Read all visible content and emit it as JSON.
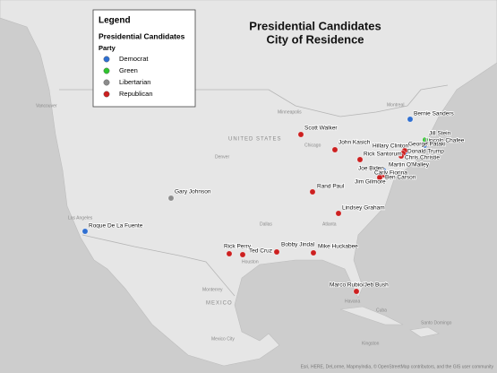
{
  "title": {
    "line1": "Presidential Candidates",
    "line2": "City of Residence"
  },
  "legend": {
    "title": "Legend",
    "layer": "Presidential Candidates",
    "field": "Party",
    "items": [
      {
        "label": "Democrat",
        "color": "#2f6fd1"
      },
      {
        "label": "Green",
        "color": "#2fc42f"
      },
      {
        "label": "Libertarian",
        "color": "#8c8c8c"
      },
      {
        "label": "Republican",
        "color": "#cc2020"
      }
    ]
  },
  "candidates": [
    {
      "name": "Roque De La Fuente",
      "party": "Democrat"
    },
    {
      "name": "Gary Johnson",
      "party": "Libertarian"
    },
    {
      "name": "Scott Walker",
      "party": "Republican"
    },
    {
      "name": "John Kasich",
      "party": "Republican"
    },
    {
      "name": "Rick Santorum",
      "party": "Republican"
    },
    {
      "name": "Hillary Clinton",
      "party": "Democrat"
    },
    {
      "name": "Bernie Sanders",
      "party": "Democrat"
    },
    {
      "name": "Jill Stein",
      "party": "Green"
    },
    {
      "name": "Lincoln Chafee",
      "party": "Democrat"
    },
    {
      "name": "George Pataki",
      "party": "Republican"
    },
    {
      "name": "Donald Trump",
      "party": "Republican"
    },
    {
      "name": "Chris Christie",
      "party": "Republican"
    },
    {
      "name": "Martin O'Malley",
      "party": "Democrat"
    },
    {
      "name": "Joe Biden",
      "party": "Democrat"
    },
    {
      "name": "Carly Fiorina",
      "party": "Republican"
    },
    {
      "name": "Ben Carson",
      "party": "Republican"
    },
    {
      "name": "Jim Gilmore",
      "party": "Republican"
    },
    {
      "name": "Rand Paul",
      "party": "Republican"
    },
    {
      "name": "Lindsey Graham",
      "party": "Republican"
    },
    {
      "name": "Rick Perry",
      "party": "Republican"
    },
    {
      "name": "Ted Cruz",
      "party": "Republican"
    },
    {
      "name": "Bobby Jindal",
      "party": "Republican"
    },
    {
      "name": "Mike Huckabee",
      "party": "Republican"
    },
    {
      "name": "Marco Rubio/Jeb Bush",
      "party": "Republican"
    }
  ],
  "basemap_labels": [
    "UNITED STATES",
    "MEXICO",
    "Montreal",
    "Chicago",
    "Denver",
    "Los Angeles",
    "Houston",
    "Monterrey",
    "Mexico City",
    "Havana",
    "Cuba",
    "Kingston",
    "Santo Domingo",
    "Vancouver",
    "Minneapolis",
    "Dallas",
    "Atlanta"
  ],
  "attribution": "Esri, HERE, DeLorme, MapmyIndia, © OpenStreetMap contributors, and the GIS user community"
}
